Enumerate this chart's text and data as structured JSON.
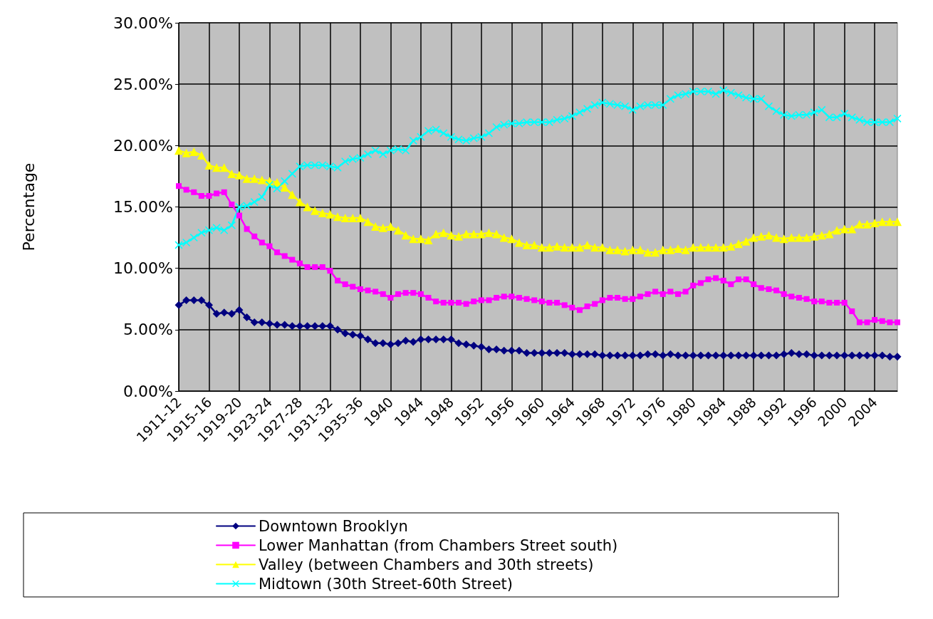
{
  "chart_data": {
    "type": "line",
    "ylabel": "Percentage",
    "categories": [
      "1911-12",
      null,
      null,
      null,
      "1915-16",
      null,
      null,
      null,
      "1919-20",
      null,
      null,
      null,
      "1923-24",
      null,
      null,
      null,
      "1927-28",
      null,
      null,
      null,
      "1931-32",
      null,
      null,
      null,
      "1935-36",
      null,
      null,
      null,
      "1940",
      null,
      null,
      null,
      "1944",
      null,
      null,
      null,
      "1948",
      null,
      null,
      null,
      "1952",
      null,
      null,
      null,
      "1956",
      null,
      null,
      null,
      "1960",
      null,
      null,
      null,
      "1964",
      null,
      null,
      null,
      "1968",
      null,
      null,
      null,
      "1972",
      null,
      null,
      null,
      "1976",
      null,
      null,
      null,
      "1980",
      null,
      null,
      null,
      "1984",
      null,
      null,
      null,
      "1988",
      null,
      null,
      null,
      "1992",
      null,
      null,
      null,
      "1996",
      null,
      null,
      null,
      "2000",
      null,
      null,
      null,
      "2004",
      null,
      null,
      null
    ],
    "series": [
      {
        "name": "Downtown Brooklyn",
        "color": "#000080",
        "marker": "diamond",
        "values": [
          7.0,
          7.4,
          7.4,
          7.4,
          7.0,
          6.3,
          6.4,
          6.3,
          6.6,
          6.0,
          5.6,
          5.6,
          5.5,
          5.4,
          5.4,
          5.3,
          5.3,
          5.3,
          5.3,
          5.3,
          5.3,
          5.0,
          4.7,
          4.6,
          4.5,
          4.2,
          3.9,
          3.9,
          3.8,
          3.9,
          4.1,
          4.0,
          4.2,
          4.2,
          4.2,
          4.2,
          4.2,
          3.9,
          3.8,
          3.7,
          3.6,
          3.4,
          3.4,
          3.3,
          3.3,
          3.3,
          3.1,
          3.1,
          3.1,
          3.1,
          3.1,
          3.1,
          3.0,
          3.0,
          3.0,
          3.0,
          2.9,
          2.9,
          2.9,
          2.9,
          2.9,
          2.9,
          3.0,
          3.0,
          2.9,
          3.0,
          2.9,
          2.9,
          2.9,
          2.9,
          2.9,
          2.9,
          2.9,
          2.9,
          2.9,
          2.9,
          2.9,
          2.9,
          2.9,
          2.9,
          3.0,
          3.1,
          3.0,
          3.0,
          2.9,
          2.9,
          2.9,
          2.9,
          2.9,
          2.9,
          2.9,
          2.9,
          2.9,
          2.9,
          2.8,
          2.8
        ]
      },
      {
        "name": "Lower Manhattan (from Chambers Street south)",
        "color": "#ff00ff",
        "marker": "square",
        "values": [
          16.7,
          16.4,
          16.2,
          15.9,
          15.9,
          16.1,
          16.2,
          15.2,
          14.3,
          13.2,
          12.6,
          12.1,
          11.8,
          11.3,
          11.0,
          10.7,
          10.4,
          10.1,
          10.1,
          10.1,
          9.8,
          9.0,
          8.7,
          8.5,
          8.3,
          8.2,
          8.1,
          7.9,
          7.6,
          7.9,
          8.0,
          8.0,
          7.9,
          7.6,
          7.3,
          7.2,
          7.2,
          7.2,
          7.1,
          7.3,
          7.4,
          7.4,
          7.6,
          7.7,
          7.7,
          7.6,
          7.5,
          7.4,
          7.3,
          7.2,
          7.2,
          7.0,
          6.8,
          6.6,
          6.9,
          7.1,
          7.4,
          7.6,
          7.6,
          7.5,
          7.5,
          7.7,
          7.9,
          8.1,
          7.9,
          8.1,
          7.9,
          8.1,
          8.6,
          8.8,
          9.1,
          9.2,
          9.0,
          8.7,
          9.1,
          9.1,
          8.7,
          8.4,
          8.3,
          8.2,
          7.9,
          7.7,
          7.6,
          7.5,
          7.3,
          7.3,
          7.2,
          7.2,
          7.2,
          6.5,
          5.6,
          5.6,
          5.8,
          5.7,
          5.6,
          5.6
        ]
      },
      {
        "name": "Valley (between Chambers and 30th streets)",
        "color": "#ffff00",
        "marker": "triangle",
        "values": [
          19.6,
          19.4,
          19.5,
          19.2,
          18.4,
          18.2,
          18.2,
          17.7,
          17.6,
          17.3,
          17.3,
          17.2,
          17.1,
          17.0,
          16.6,
          16.0,
          15.4,
          15.0,
          14.7,
          14.5,
          14.4,
          14.2,
          14.1,
          14.1,
          14.1,
          13.8,
          13.4,
          13.3,
          13.4,
          13.1,
          12.7,
          12.4,
          12.4,
          12.3,
          12.8,
          12.9,
          12.7,
          12.6,
          12.8,
          12.8,
          12.8,
          12.9,
          12.8,
          12.5,
          12.4,
          12.1,
          11.9,
          11.9,
          11.7,
          11.7,
          11.8,
          11.7,
          11.7,
          11.7,
          11.9,
          11.7,
          11.7,
          11.5,
          11.5,
          11.4,
          11.5,
          11.5,
          11.3,
          11.3,
          11.5,
          11.5,
          11.6,
          11.5,
          11.7,
          11.7,
          11.7,
          11.7,
          11.7,
          11.8,
          12.0,
          12.2,
          12.5,
          12.6,
          12.7,
          12.5,
          12.4,
          12.5,
          12.5,
          12.5,
          12.6,
          12.7,
          12.8,
          13.1,
          13.2,
          13.2,
          13.6,
          13.6,
          13.7,
          13.8,
          13.8,
          13.8
        ]
      },
      {
        "name": "Midtown (30th Street-60th Street)",
        "color": "#00ffff",
        "marker": "cross",
        "values": [
          11.9,
          12.1,
          12.5,
          12.9,
          13.1,
          13.3,
          13.1,
          13.5,
          15.0,
          15.1,
          15.4,
          15.8,
          16.8,
          16.5,
          17.1,
          17.7,
          18.3,
          18.4,
          18.4,
          18.4,
          18.3,
          18.2,
          18.7,
          18.9,
          19.0,
          19.3,
          19.6,
          19.3,
          19.6,
          19.7,
          19.6,
          20.4,
          20.7,
          21.2,
          21.3,
          21.0,
          20.7,
          20.5,
          20.4,
          20.6,
          20.7,
          21.0,
          21.5,
          21.7,
          21.8,
          21.8,
          21.9,
          21.9,
          21.9,
          21.9,
          22.1,
          22.2,
          22.4,
          22.7,
          23.0,
          23.3,
          23.5,
          23.4,
          23.3,
          23.2,
          22.9,
          23.2,
          23.3,
          23.3,
          23.3,
          23.8,
          24.1,
          24.2,
          24.4,
          24.4,
          24.4,
          24.2,
          24.5,
          24.3,
          24.1,
          23.9,
          23.8,
          23.8,
          23.2,
          22.8,
          22.5,
          22.4,
          22.5,
          22.5,
          22.7,
          22.9,
          22.3,
          22.3,
          22.6,
          22.3,
          22.1,
          21.9,
          21.9,
          21.9,
          21.9,
          22.2
        ]
      }
    ],
    "ylim": [
      0,
      30
    ],
    "yticks": [
      {
        "value": 0,
        "label": "0.00%"
      },
      {
        "value": 5,
        "label": "5.00%"
      },
      {
        "value": 10,
        "label": "10.00%"
      },
      {
        "value": 15,
        "label": "15.00%"
      },
      {
        "value": 20,
        "label": "20.00%"
      },
      {
        "value": 25,
        "label": "25.00%"
      },
      {
        "value": 30,
        "label": "30.00%"
      }
    ],
    "grid": true,
    "legend": "bottom",
    "line_style": "solid"
  }
}
